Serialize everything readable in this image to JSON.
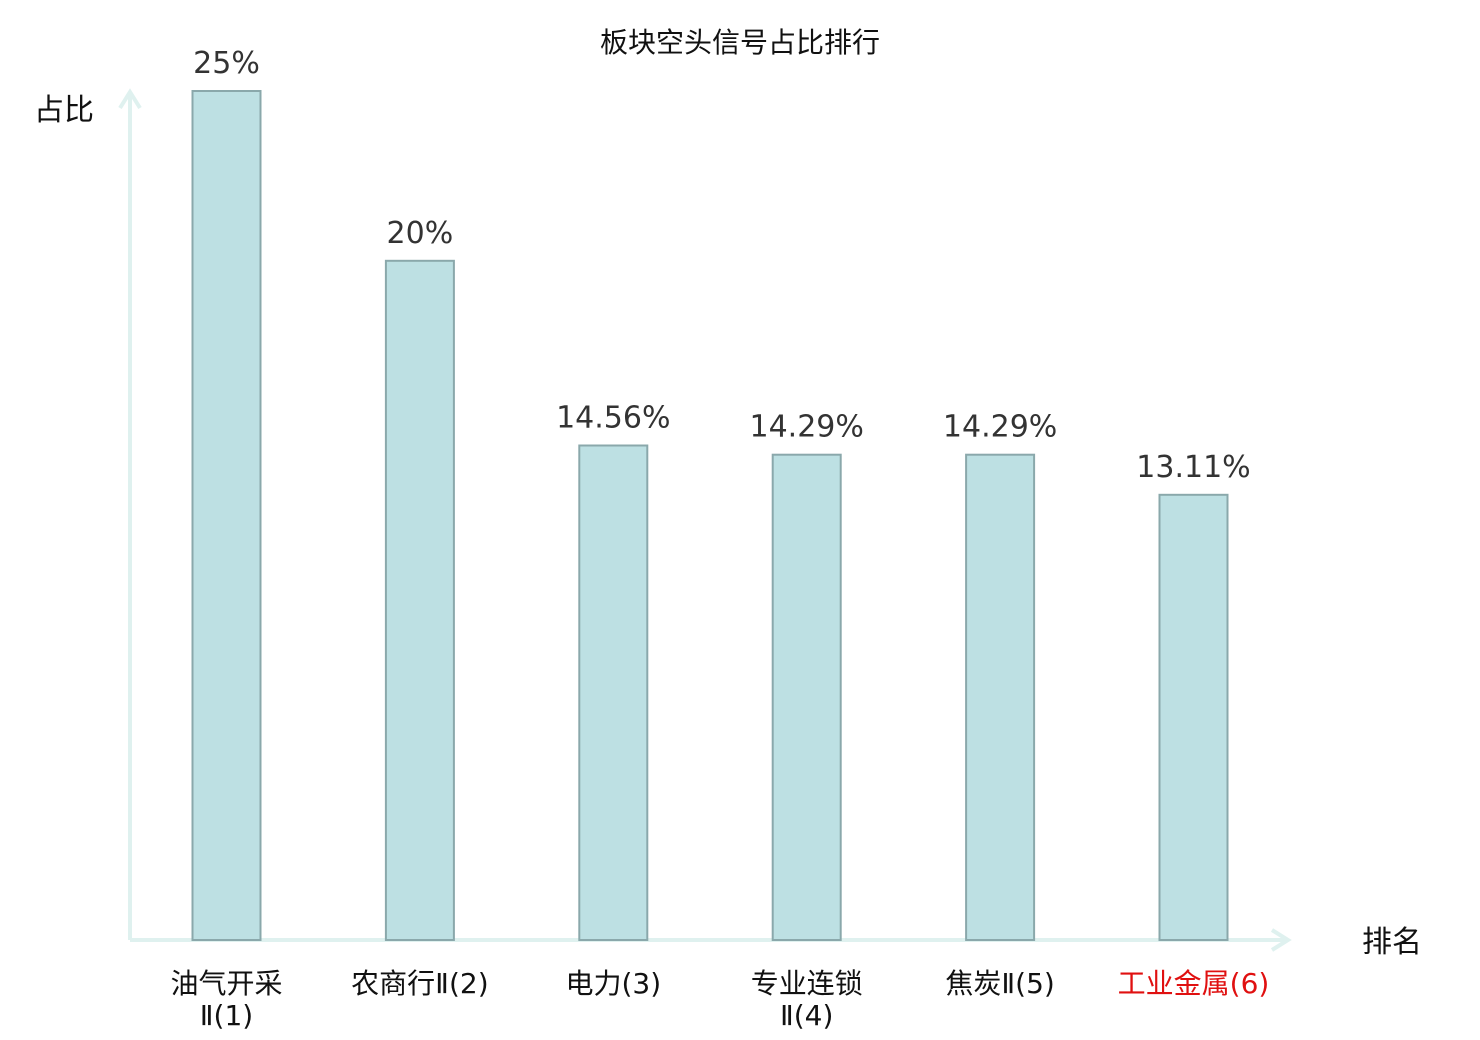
{
  "chart_data": {
    "type": "bar",
    "title": "板块空头信号占比排行",
    "ylabel": "占比",
    "xlabel": "排名",
    "ylim": [
      0,
      25
    ],
    "grid": false,
    "categories": [
      [
        "油气开采",
        "Ⅱ(1)"
      ],
      [
        "农商行Ⅱ(2)"
      ],
      [
        "电力(3)"
      ],
      [
        "专业连锁",
        "Ⅱ(4)"
      ],
      [
        "焦炭Ⅱ(5)"
      ],
      [
        "工业金属(6)"
      ]
    ],
    "values": [
      25,
      20,
      14.56,
      14.29,
      14.29,
      13.11
    ],
    "value_labels": [
      "25%",
      "20%",
      "14.56%",
      "14.29%",
      "14.29%",
      "13.11%"
    ],
    "highlight_index": 5,
    "colors": {
      "bar": "#bde0e3",
      "bar_edge": "#8aa8ab",
      "axis": "#dff1ef",
      "highlight_text": "#e01010"
    }
  }
}
